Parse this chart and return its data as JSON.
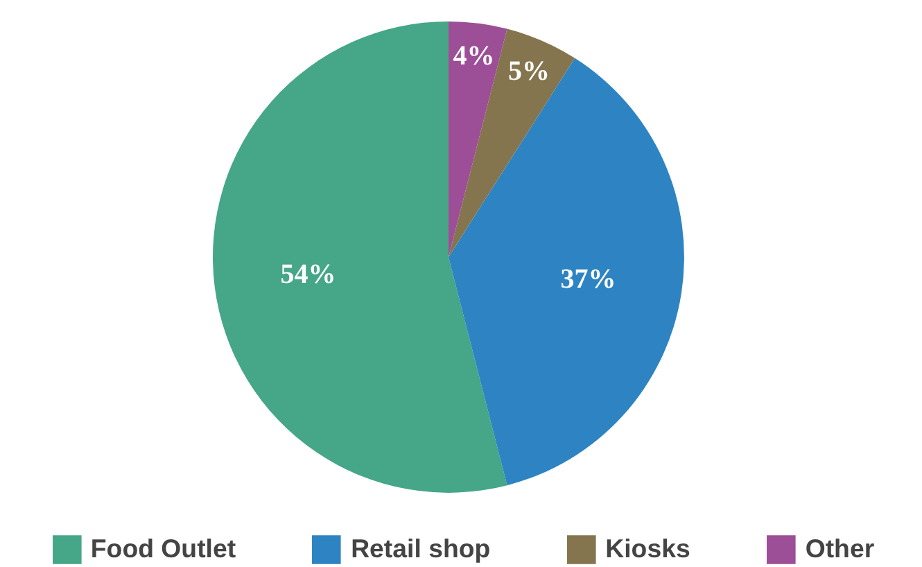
{
  "chart_data": {
    "type": "pie",
    "categories": [
      "Food Outlet",
      "Retail shop",
      "Kiosks",
      "Other"
    ],
    "values": [
      54,
      37,
      5,
      4
    ],
    "colors": [
      "#45a688",
      "#2e84c2",
      "#85754e",
      "#9c4e96"
    ],
    "value_labels": [
      "54%",
      "37%",
      "5%",
      "4%"
    ],
    "legend": "bottom"
  }
}
